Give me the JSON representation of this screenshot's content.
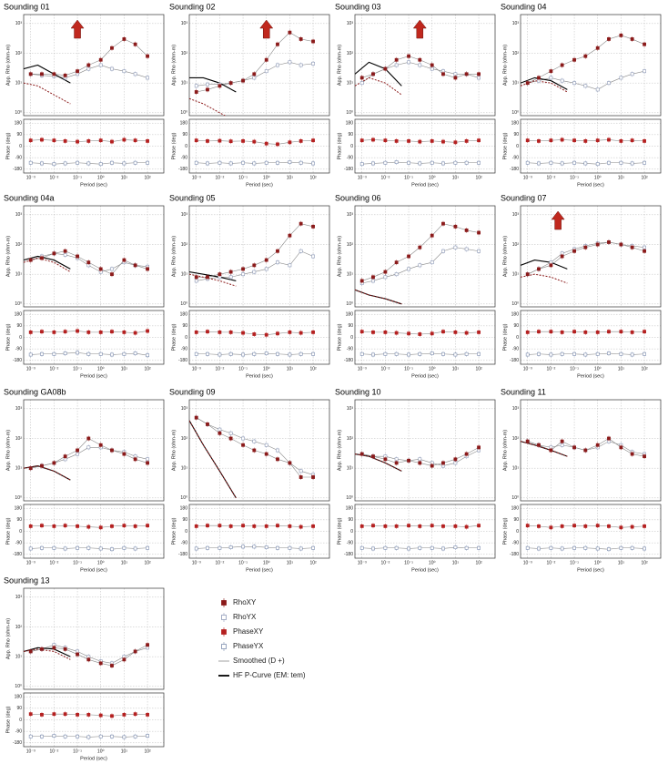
{
  "axes": {
    "xlim": [
      0.0005,
      500
    ],
    "xticks": [
      {
        "value": 0.001,
        "label": "10⁻³"
      },
      {
        "value": 0.01,
        "label": "10⁻²"
      },
      {
        "value": 0.1,
        "label": "10⁻¹"
      },
      {
        "value": 1,
        "label": "10⁰"
      },
      {
        "value": 10,
        "label": "10¹"
      },
      {
        "value": 100,
        "label": "10²"
      }
    ],
    "ylim": [
      0.8,
      2000
    ],
    "yticks": [
      {
        "value": 1,
        "label": "10⁰"
      },
      {
        "value": 10,
        "label": "10¹"
      },
      {
        "value": 100,
        "label": "10²"
      },
      {
        "value": 1000,
        "label": "10³"
      }
    ],
    "phase_lim": [
      -210,
      210
    ],
    "phase_ticks": [
      180,
      90,
      0,
      -90,
      -180
    ],
    "x_label": "Period (sec)",
    "rho_label": "App. Rho (ohm-m)",
    "phase_label": "Phase (deg)"
  },
  "arrow_color": "#c0281e",
  "legend": [
    {
      "name": "RhoXY",
      "color": "#8b1a1a"
    },
    {
      "name": "RhoYX",
      "color": "#8f9bb8"
    },
    {
      "name": "PhaseXY",
      "color": "#b52020"
    },
    {
      "name": "PhaseYX",
      "color": "#7f8fb0"
    },
    {
      "name": "Smoothed (D +)",
      "color": "#8a8a8a"
    },
    {
      "name": "HF P-Curve (EM: tem)",
      "color": "#000000"
    }
  ],
  "chart_data": [
    {
      "type": "scatter",
      "title": "Sounding 01",
      "x": [
        0.001,
        0.003,
        0.01,
        0.03,
        0.1,
        0.3,
        1,
        3,
        10,
        30,
        100
      ],
      "rho_xy": [
        20,
        20,
        20,
        18,
        25,
        40,
        60,
        150,
        300,
        200,
        80
      ],
      "rho_yx": [
        20,
        18,
        17,
        15,
        20,
        30,
        40,
        30,
        25,
        20,
        15
      ],
      "phase_xy": [
        45,
        50,
        45,
        40,
        35,
        40,
        45,
        35,
        50,
        45,
        40
      ],
      "phase_yx": [
        -130,
        -135,
        -140,
        -135,
        -130,
        -135,
        -140,
        -130,
        -135,
        -130,
        -130
      ],
      "hf_x": [
        0.0005,
        0.002,
        0.01,
        0.05
      ],
      "hf_black": [
        30,
        40,
        20,
        10
      ],
      "hf_red": [
        10,
        8,
        4,
        2
      ],
      "arrow_at": 0.1
    },
    {
      "type": "scatter",
      "title": "Sounding 02",
      "x": [
        0.001,
        0.003,
        0.01,
        0.03,
        0.1,
        0.3,
        1,
        3,
        10,
        30,
        100
      ],
      "rho_xy": [
        5,
        6,
        8,
        10,
        12,
        20,
        60,
        200,
        500,
        300,
        250
      ],
      "rho_yx": [
        8,
        9,
        9,
        10,
        12,
        15,
        25,
        40,
        50,
        40,
        45
      ],
      "phase_xy": [
        45,
        40,
        42,
        38,
        40,
        35,
        20,
        15,
        30,
        40,
        45
      ],
      "phase_yx": [
        -130,
        -135,
        -130,
        -135,
        -130,
        -135,
        -130,
        -130,
        -125,
        -130,
        -135
      ],
      "hf_x": [
        0.0005,
        0.002,
        0.01,
        0.05
      ],
      "hf_black": [
        15,
        15,
        10,
        5
      ],
      "hf_red": [
        3,
        2,
        1,
        0.5
      ],
      "arrow_at": 1
    },
    {
      "type": "scatter",
      "title": "Sounding 03",
      "x": [
        0.001,
        0.003,
        0.01,
        0.03,
        0.1,
        0.3,
        1,
        3,
        10,
        30,
        100
      ],
      "rho_xy": [
        15,
        20,
        30,
        60,
        80,
        60,
        40,
        20,
        15,
        20,
        20
      ],
      "rho_yx": [
        10,
        20,
        30,
        40,
        50,
        40,
        30,
        25,
        20,
        20,
        15
      ],
      "phase_xy": [
        45,
        50,
        45,
        40,
        40,
        35,
        40,
        35,
        30,
        40,
        45
      ],
      "phase_yx": [
        -140,
        -135,
        -130,
        -125,
        -130,
        -135,
        -130,
        -135,
        -130,
        -130,
        -130
      ],
      "hf_x": [
        0.0005,
        0.002,
        0.01,
        0.05
      ],
      "hf_black": [
        20,
        50,
        30,
        8
      ],
      "hf_red": [
        8,
        15,
        10,
        4
      ],
      "arrow_at": 0.3
    },
    {
      "type": "scatter",
      "title": "Sounding 04",
      "x": [
        0.001,
        0.003,
        0.01,
        0.03,
        0.1,
        0.3,
        1,
        3,
        10,
        30,
        100
      ],
      "rho_xy": [
        10,
        15,
        25,
        40,
        60,
        80,
        150,
        300,
        400,
        300,
        200
      ],
      "rho_yx": [
        10,
        12,
        15,
        12,
        10,
        8,
        6,
        10,
        15,
        20,
        25
      ],
      "phase_xy": [
        45,
        40,
        45,
        50,
        45,
        40,
        45,
        50,
        40,
        45,
        40
      ],
      "phase_yx": [
        -130,
        -135,
        -130,
        -135,
        -130,
        -135,
        -140,
        -130,
        -130,
        -135,
        -130
      ],
      "hf_x": [
        0.0005,
        0.002,
        0.01,
        0.05
      ],
      "hf_black": [
        10,
        15,
        12,
        6
      ],
      "hf_red": [
        8,
        12,
        10,
        5
      ]
    },
    {
      "type": "scatter",
      "title": "Sounding 04a",
      "x": [
        0.001,
        0.003,
        0.01,
        0.03,
        0.1,
        0.3,
        1,
        3,
        10,
        30,
        100
      ],
      "rho_xy": [
        30,
        35,
        50,
        60,
        40,
        25,
        15,
        10,
        30,
        20,
        15
      ],
      "rho_yx": [
        30,
        40,
        50,
        45,
        35,
        20,
        12,
        15,
        25,
        20,
        18
      ],
      "phase_xy": [
        40,
        45,
        40,
        45,
        50,
        40,
        40,
        45,
        40,
        35,
        50
      ],
      "phase_yx": [
        -135,
        -130,
        -130,
        -125,
        -120,
        -130,
        -130,
        -135,
        -130,
        -125,
        -140
      ],
      "hf_x": [
        0.0005,
        0.002,
        0.01,
        0.05
      ],
      "hf_black": [
        30,
        40,
        30,
        15
      ],
      "hf_red": [
        25,
        35,
        25,
        12
      ]
    },
    {
      "type": "scatter",
      "title": "Sounding 05",
      "x": [
        0.001,
        0.003,
        0.01,
        0.03,
        0.1,
        0.3,
        1,
        3,
        10,
        30,
        100
      ],
      "rho_xy": [
        8,
        8,
        10,
        12,
        15,
        20,
        30,
        60,
        200,
        500,
        400
      ],
      "rho_yx": [
        6,
        7,
        8,
        8,
        10,
        12,
        15,
        25,
        20,
        60,
        40
      ],
      "phase_xy": [
        40,
        45,
        40,
        40,
        35,
        25,
        20,
        30,
        40,
        35,
        40
      ],
      "phase_yx": [
        -130,
        -130,
        -135,
        -130,
        -135,
        -130,
        -125,
        -130,
        -135,
        -130,
        -130
      ],
      "hf_x": [
        0.0005,
        0.002,
        0.01,
        0.05
      ],
      "hf_black": [
        12,
        10,
        8,
        6
      ],
      "hf_red": [
        10,
        8,
        6,
        4
      ]
    },
    {
      "type": "scatter",
      "title": "Sounding 06",
      "x": [
        0.001,
        0.003,
        0.01,
        0.03,
        0.1,
        0.3,
        1,
        3,
        10,
        30,
        100
      ],
      "rho_xy": [
        6,
        8,
        12,
        25,
        40,
        80,
        200,
        500,
        400,
        300,
        250
      ],
      "rho_yx": [
        5,
        6,
        8,
        10,
        15,
        20,
        25,
        60,
        80,
        70,
        60
      ],
      "phase_xy": [
        45,
        40,
        40,
        35,
        30,
        25,
        30,
        45,
        40,
        35,
        40
      ],
      "phase_yx": [
        -130,
        -135,
        -130,
        -130,
        -135,
        -130,
        -125,
        -130,
        -135,
        -130,
        -130
      ],
      "hf_x": [
        0.0005,
        0.002,
        0.01,
        0.05
      ],
      "hf_black": [
        3,
        2,
        1.5,
        1
      ],
      "hf_red": [
        3,
        2,
        1.5,
        1
      ]
    },
    {
      "type": "scatter",
      "title": "Sounding 07",
      "x": [
        0.001,
        0.003,
        0.01,
        0.03,
        0.1,
        0.3,
        1,
        3,
        10,
        30,
        100
      ],
      "rho_xy": [
        10,
        15,
        20,
        40,
        60,
        80,
        100,
        120,
        100,
        80,
        60
      ],
      "rho_yx": [
        10,
        15,
        25,
        50,
        70,
        90,
        110,
        120,
        100,
        90,
        80
      ],
      "phase_xy": [
        40,
        45,
        45,
        40,
        45,
        40,
        40,
        45,
        45,
        40,
        45
      ],
      "phase_yx": [
        -135,
        -130,
        -135,
        -130,
        -130,
        -135,
        -130,
        -125,
        -130,
        -135,
        -130
      ],
      "hf_x": [
        0.0005,
        0.002,
        0.01,
        0.05
      ],
      "hf_black": [
        20,
        30,
        25,
        15
      ],
      "hf_red": [
        8,
        10,
        8,
        5
      ],
      "arrow_at": 0.02
    },
    {
      "type": "scatter",
      "title": "Sounding GA08b",
      "x": [
        0.001,
        0.003,
        0.01,
        0.03,
        0.1,
        0.3,
        1,
        3,
        10,
        30,
        100
      ],
      "rho_xy": [
        10,
        12,
        15,
        25,
        40,
        100,
        60,
        40,
        30,
        20,
        15
      ],
      "rho_yx": [
        10,
        12,
        15,
        20,
        30,
        50,
        50,
        40,
        35,
        25,
        20
      ],
      "phase_xy": [
        40,
        45,
        40,
        45,
        40,
        35,
        30,
        40,
        45,
        40,
        45
      ],
      "phase_yx": [
        -135,
        -130,
        -130,
        -135,
        -130,
        -130,
        -135,
        -140,
        -130,
        -135,
        -130
      ],
      "hf_x": [
        0.0005,
        0.002,
        0.01,
        0.05
      ],
      "hf_black": [
        10,
        12,
        8,
        4
      ],
      "hf_red": [
        10,
        12,
        8,
        4
      ]
    },
    {
      "type": "scatter",
      "title": "Sounding 09",
      "x": [
        0.001,
        0.003,
        0.01,
        0.03,
        0.1,
        0.3,
        1,
        3,
        10,
        30,
        100
      ],
      "rho_xy": [
        500,
        300,
        150,
        100,
        60,
        40,
        30,
        20,
        15,
        5,
        5
      ],
      "rho_yx": [
        500,
        300,
        200,
        150,
        100,
        80,
        60,
        40,
        15,
        8,
        6
      ],
      "phase_xy": [
        40,
        45,
        45,
        40,
        45,
        40,
        40,
        45,
        40,
        35,
        40
      ],
      "phase_yx": [
        -135,
        -130,
        -130,
        -125,
        -120,
        -120,
        -125,
        -130,
        -130,
        -135,
        -130
      ],
      "hf_x": [
        0.0005,
        0.002,
        0.01,
        0.05
      ],
      "hf_black": [
        400,
        60,
        8,
        1
      ],
      "hf_red": [
        400,
        60,
        8,
        1
      ]
    },
    {
      "type": "scatter",
      "title": "Sounding 10",
      "x": [
        0.001,
        0.003,
        0.01,
        0.03,
        0.1,
        0.3,
        1,
        3,
        10,
        30,
        100
      ],
      "rho_xy": [
        30,
        25,
        20,
        15,
        18,
        15,
        12,
        15,
        20,
        30,
        50
      ],
      "rho_yx": [
        30,
        25,
        25,
        20,
        18,
        20,
        15,
        12,
        15,
        25,
        40
      ],
      "phase_xy": [
        40,
        45,
        40,
        40,
        45,
        40,
        45,
        40,
        40,
        35,
        45
      ],
      "phase_yx": [
        -130,
        -135,
        -130,
        -130,
        -135,
        -130,
        -130,
        -135,
        -125,
        -130,
        -130
      ],
      "hf_x": [
        0.0005,
        0.002,
        0.01,
        0.05
      ],
      "hf_black": [
        30,
        25,
        15,
        8
      ],
      "hf_red": [
        30,
        25,
        15,
        8
      ]
    },
    {
      "type": "scatter",
      "title": "Sounding 11",
      "x": [
        0.001,
        0.003,
        0.01,
        0.03,
        0.1,
        0.3,
        1,
        3,
        10,
        30,
        100
      ],
      "rho_xy": [
        80,
        60,
        40,
        80,
        50,
        40,
        60,
        100,
        50,
        30,
        25
      ],
      "rho_yx": [
        80,
        60,
        50,
        60,
        50,
        40,
        50,
        80,
        60,
        35,
        30
      ],
      "phase_xy": [
        45,
        40,
        30,
        40,
        45,
        40,
        45,
        40,
        30,
        35,
        40
      ],
      "phase_yx": [
        -130,
        -135,
        -130,
        -135,
        -130,
        -130,
        -135,
        -140,
        -130,
        -130,
        -135
      ],
      "hf_x": [
        0.0005,
        0.002,
        0.01,
        0.05
      ],
      "hf_black": [
        80,
        60,
        40,
        25
      ],
      "hf_red": [
        80,
        60,
        40,
        25
      ]
    },
    {
      "type": "scatter",
      "title": "Sounding 13",
      "x": [
        0.001,
        0.003,
        0.01,
        0.03,
        0.1,
        0.3,
        1,
        3,
        10,
        30,
        100
      ],
      "rho_xy": [
        15,
        18,
        20,
        18,
        12,
        8,
        6,
        5,
        8,
        15,
        25
      ],
      "rho_yx": [
        15,
        18,
        25,
        20,
        15,
        10,
        7,
        6,
        10,
        15,
        20
      ],
      "phase_xy": [
        45,
        40,
        45,
        45,
        40,
        40,
        35,
        30,
        40,
        45,
        40
      ],
      "phase_yx": [
        -130,
        -130,
        -125,
        -130,
        -130,
        -135,
        -130,
        -130,
        -135,
        -130,
        -125
      ],
      "hf_x": [
        0.0005,
        0.002,
        0.01,
        0.05
      ],
      "hf_black": [
        15,
        20,
        18,
        10
      ],
      "hf_red": [
        15,
        18,
        15,
        8
      ]
    }
  ]
}
